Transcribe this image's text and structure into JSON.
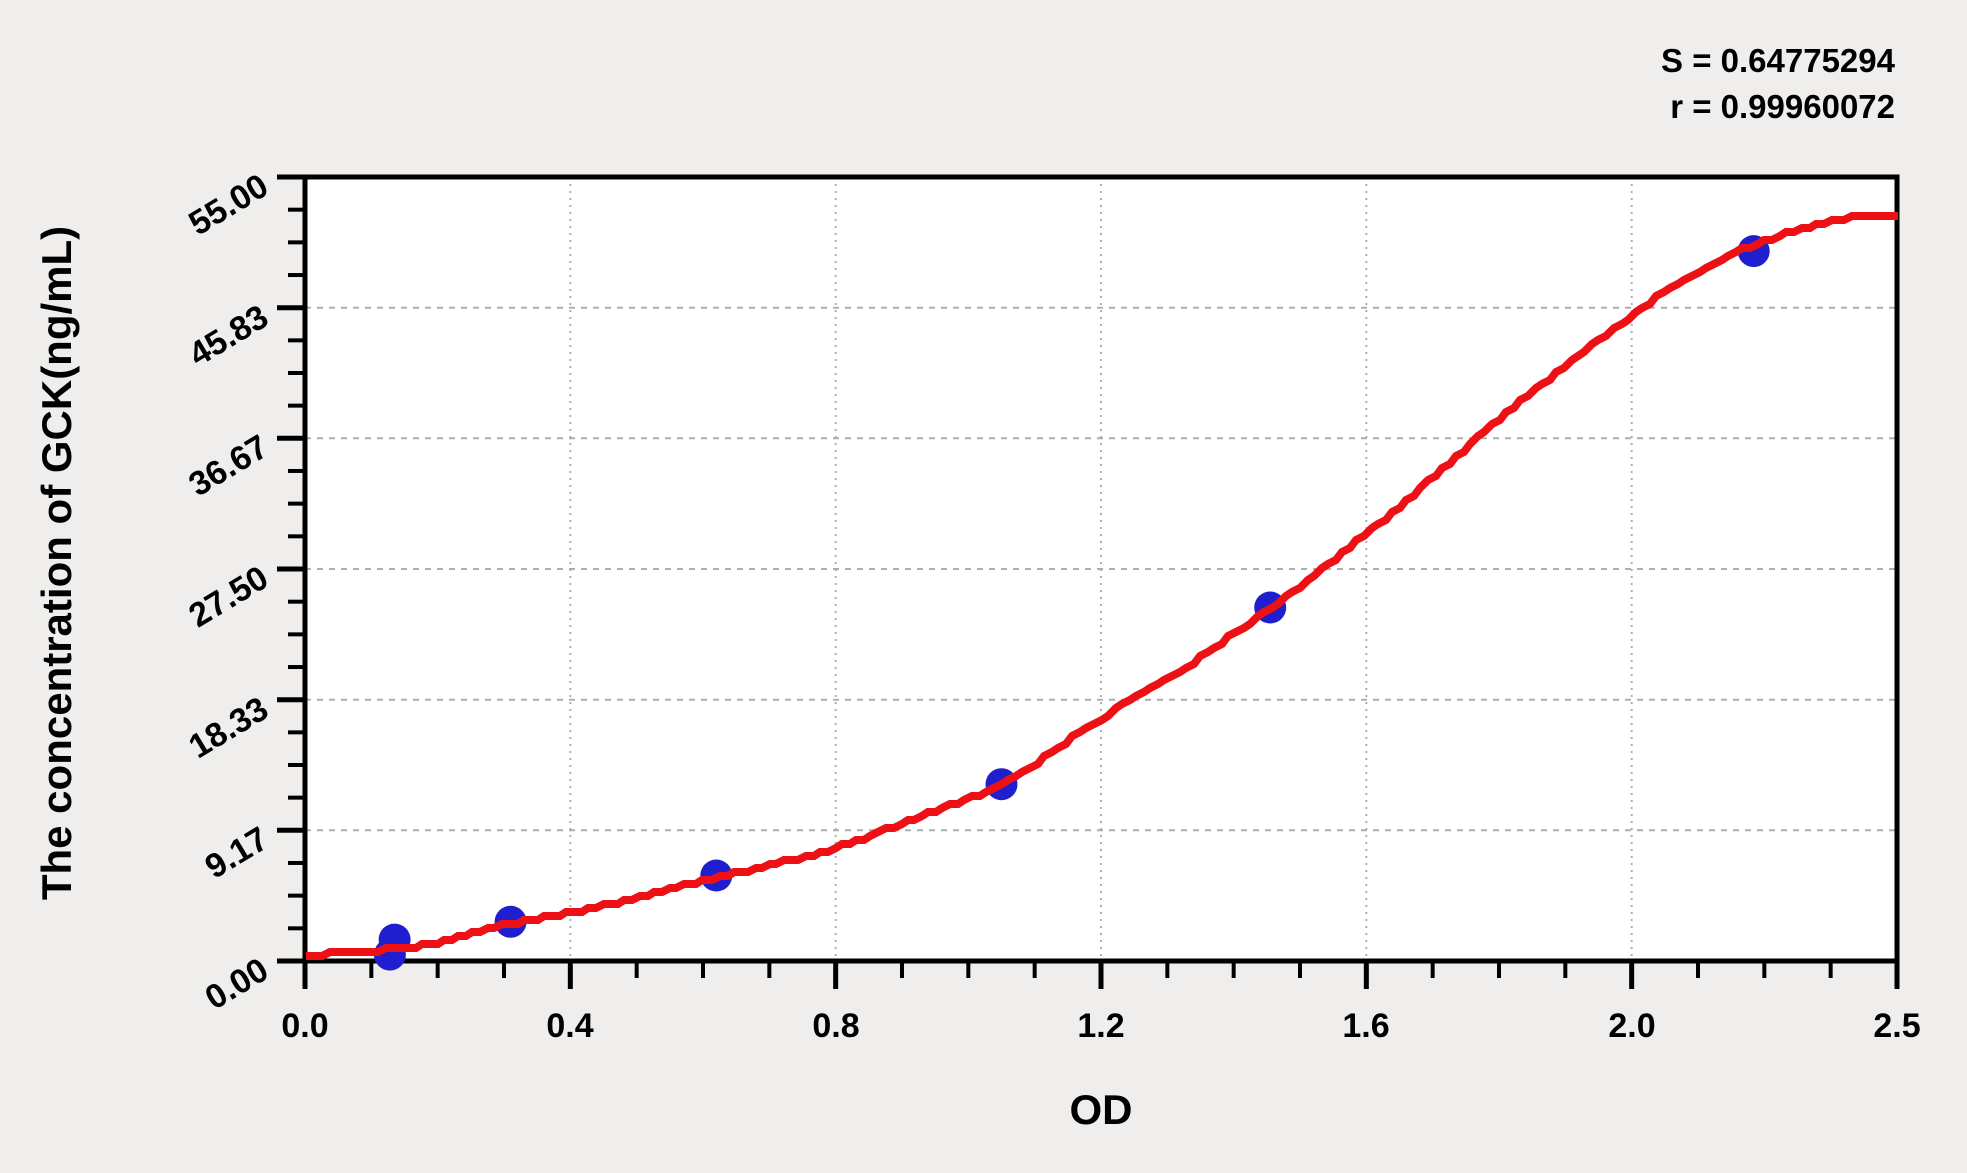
{
  "stats": {
    "s_line": "S = 0.64775294",
    "r_line": "r = 0.99960072"
  },
  "chart_data": {
    "type": "scatter",
    "title": "",
    "xlabel": "OD",
    "ylabel": "The concentration of GCK(ng/mL)",
    "legend": "none",
    "grid": "dashed-major",
    "x_axis": {
      "tick_labels": [
        "0.0",
        "0.4",
        "0.8",
        "1.2",
        "1.6",
        "2.0",
        "2.5"
      ],
      "tick_values": [
        0.0,
        0.4,
        0.8,
        1.2,
        1.6,
        2.0,
        2.5
      ],
      "minor_ticks_per_interval": 3,
      "range": [
        0.0,
        2.5
      ]
    },
    "y_axis": {
      "tick_labels": [
        "55.00",
        "45.83",
        "36.67",
        "27.50",
        "18.33",
        "9.17",
        "0.00"
      ],
      "tick_values": [
        55.0,
        45.83,
        36.67,
        27.5,
        18.33,
        9.17,
        0.0
      ],
      "minor_ticks_per_interval": 3,
      "range": [
        0.0,
        55.0
      ]
    },
    "points": [
      [
        0.128,
        0.45
      ],
      [
        0.135,
        1.5
      ],
      [
        0.31,
        2.75
      ],
      [
        0.62,
        6.0
      ],
      [
        1.05,
        12.4
      ],
      [
        1.455,
        24.8
      ],
      [
        2.23,
        49.8
      ]
    ],
    "fit_curve": [
      [
        0.0,
        0.4
      ],
      [
        0.1,
        0.7
      ],
      [
        0.2,
        1.3
      ],
      [
        0.31,
        2.6
      ],
      [
        0.45,
        3.9
      ],
      [
        0.6,
        5.6
      ],
      [
        0.7,
        6.7
      ],
      [
        0.8,
        7.9
      ],
      [
        0.9,
        9.7
      ],
      [
        1.05,
        12.4
      ],
      [
        1.2,
        17.0
      ],
      [
        1.35,
        21.3
      ],
      [
        1.5,
        26.3
      ],
      [
        1.65,
        31.9
      ],
      [
        1.8,
        38.0
      ],
      [
        1.95,
        43.5
      ],
      [
        2.1,
        47.8
      ],
      [
        2.25,
        50.5
      ],
      [
        2.4,
        52.1
      ],
      [
        2.5,
        52.4
      ]
    ],
    "statistics": {
      "S": "0.64775294",
      "r": "0.99960072"
    },
    "colors": {
      "curve": "#ed1115",
      "point": "#1f1fd0",
      "grid": "#aeaeae",
      "axis": "#000000",
      "plot_background": "#ffffff",
      "page_background": "#efeeec"
    }
  }
}
